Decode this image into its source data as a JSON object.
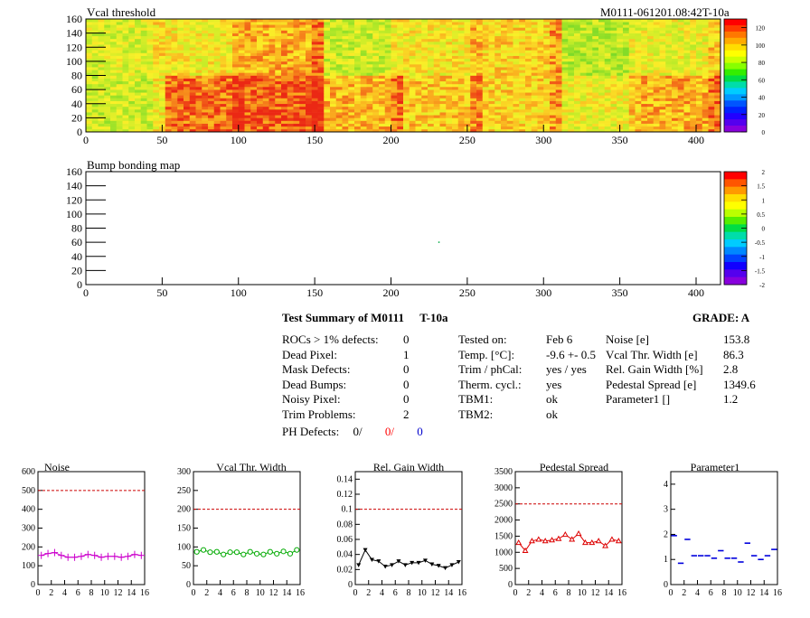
{
  "module_label": "M0111-061201.08:42T-10a",
  "maps": [
    {
      "title": "Vcal threshold",
      "x_ticks": [
        0,
        50,
        100,
        150,
        200,
        250,
        300,
        350,
        400
      ],
      "y_ticks": [
        0,
        20,
        40,
        60,
        80,
        100,
        120,
        140,
        160
      ],
      "xlim": [
        0,
        416
      ],
      "ylim": [
        0,
        160
      ],
      "palette_labels": [
        "0",
        "20",
        "40",
        "60",
        "80",
        "100",
        "120"
      ]
    },
    {
      "title": "Bump bonding map",
      "x_ticks": [
        0,
        50,
        100,
        150,
        200,
        250,
        300,
        350,
        400
      ],
      "y_ticks": [
        0,
        20,
        40,
        60,
        80,
        100,
        120,
        140,
        160
      ],
      "xlim": [
        0,
        416
      ],
      "ylim": [
        0,
        160
      ],
      "palette_labels": [
        "-2",
        "-1.5",
        "-1",
        "-0.5",
        "0",
        "0.5",
        "1",
        "1.5",
        "2"
      ]
    }
  ],
  "summary": {
    "title": "Test Summary of M0111",
    "temp_label": "T-10a",
    "grade": "GRADE:  A",
    "col1": [
      {
        "label": "ROCs > 1% defects:",
        "value": "0"
      },
      {
        "label": "Dead Pixel:",
        "value": "1"
      },
      {
        "label": "Mask Defects:",
        "value": "0"
      },
      {
        "label": "Dead Bumps:",
        "value": "0"
      },
      {
        "label": "Noisy Pixel:",
        "value": "0"
      },
      {
        "label": "Trim Problems:",
        "value": "2"
      }
    ],
    "ph_defects": {
      "label": "PH Defects:",
      "v1": "0/",
      "v2": "0/",
      "v3": "0",
      "c2": "#ff0000",
      "c3": "#0000cc"
    },
    "col2": [
      {
        "label": "Tested on:",
        "value": "Feb 6"
      },
      {
        "label": "Temp. [°C]:",
        "value": "-9.6 +- 0.5"
      },
      {
        "label": "Trim / phCal:",
        "value": "yes / yes"
      },
      {
        "label": "Therm. cycl.:",
        "value": "yes"
      },
      {
        "label": "TBM1:",
        "value": "ok"
      },
      {
        "label": "TBM2:",
        "value": "ok"
      }
    ],
    "col3": [
      {
        "label": "Noise [e]",
        "value": "153.8"
      },
      {
        "label": "Vcal Thr. Width [e]",
        "value": "86.3"
      },
      {
        "label": "Rel. Gain Width [%]",
        "value": "2.8"
      },
      {
        "label": "Pedestal Spread [e]",
        "value": "1349.6"
      },
      {
        "label": "Parameter1 []",
        "value": "1.2"
      }
    ]
  },
  "chart_data": [
    {
      "type": "line",
      "title": "Noise",
      "color": "#cc00cc",
      "marker": "plus",
      "x": [
        0,
        1,
        2,
        3,
        4,
        5,
        6,
        7,
        8,
        9,
        10,
        11,
        12,
        13,
        14,
        15
      ],
      "values": [
        155,
        165,
        170,
        155,
        145,
        145,
        150,
        160,
        155,
        145,
        150,
        150,
        145,
        150,
        160,
        155
      ],
      "ylim": [
        0,
        600
      ],
      "y_ticks": [
        0,
        100,
        200,
        300,
        400,
        500,
        600
      ],
      "limit": 500,
      "x_ticks": [
        0,
        2,
        4,
        6,
        8,
        10,
        12,
        14,
        16
      ]
    },
    {
      "type": "line",
      "title": "Vcal Thr. Width",
      "color": "#00aa00",
      "marker": "circle",
      "x": [
        0,
        1,
        2,
        3,
        4,
        5,
        6,
        7,
        8,
        9,
        10,
        11,
        12,
        13,
        14,
        15
      ],
      "values": [
        87,
        92,
        86,
        87,
        80,
        86,
        86,
        80,
        87,
        82,
        80,
        87,
        82,
        88,
        82,
        92
      ],
      "ylim": [
        0,
        300
      ],
      "y_ticks": [
        0,
        50,
        100,
        150,
        200,
        250,
        300
      ],
      "limit": 200,
      "x_ticks": [
        0,
        2,
        4,
        6,
        8,
        10,
        12,
        14,
        16
      ]
    },
    {
      "type": "line",
      "title": "Rel. Gain Width",
      "color": "#000000",
      "marker": "triangle-down",
      "x": [
        0,
        1,
        2,
        3,
        4,
        5,
        6,
        7,
        8,
        9,
        10,
        11,
        12,
        13,
        14,
        15
      ],
      "values": [
        0.026,
        0.046,
        0.033,
        0.031,
        0.024,
        0.026,
        0.031,
        0.026,
        0.029,
        0.029,
        0.032,
        0.027,
        0.025,
        0.022,
        0.026,
        0.03
      ],
      "ylim": [
        0,
        0.15
      ],
      "y_ticks": [
        0,
        0.02,
        0.04,
        0.06,
        0.08,
        0.1,
        0.12,
        0.14
      ],
      "limit": 0.1,
      "x_ticks": [
        0,
        2,
        4,
        6,
        8,
        10,
        12,
        14,
        16
      ]
    },
    {
      "type": "line",
      "title": "Pedestal Spread",
      "color": "#dd0000",
      "marker": "triangle-up",
      "x": [
        0,
        1,
        2,
        3,
        4,
        5,
        6,
        7,
        8,
        9,
        10,
        11,
        12,
        13,
        14,
        15
      ],
      "values": [
        1300,
        1050,
        1350,
        1400,
        1350,
        1380,
        1420,
        1550,
        1400,
        1580,
        1300,
        1300,
        1350,
        1200,
        1400,
        1350
      ],
      "ylim": [
        0,
        3500
      ],
      "y_ticks": [
        0,
        500,
        1000,
        1500,
        2000,
        2500,
        3000,
        3500
      ],
      "limit": 2500,
      "x_ticks": [
        0,
        2,
        4,
        6,
        8,
        10,
        12,
        14,
        16
      ]
    },
    {
      "type": "scatter",
      "title": "Parameter1",
      "color": "#0000dd",
      "marker": "hline",
      "x": [
        0,
        1,
        2,
        3,
        4,
        5,
        6,
        7,
        8,
        9,
        10,
        11,
        12,
        13,
        14,
        15
      ],
      "values": [
        1.95,
        0.85,
        1.8,
        1.15,
        1.15,
        1.15,
        1.05,
        1.35,
        1.05,
        1.05,
        0.9,
        1.65,
        1.15,
        1.0,
        1.15,
        1.4
      ],
      "ylim": [
        0,
        4.5
      ],
      "y_ticks": [
        0,
        1,
        2,
        3,
        4
      ],
      "limit": null,
      "x_ticks": [
        0,
        2,
        4,
        6,
        8,
        10,
        12,
        14,
        16
      ]
    }
  ]
}
